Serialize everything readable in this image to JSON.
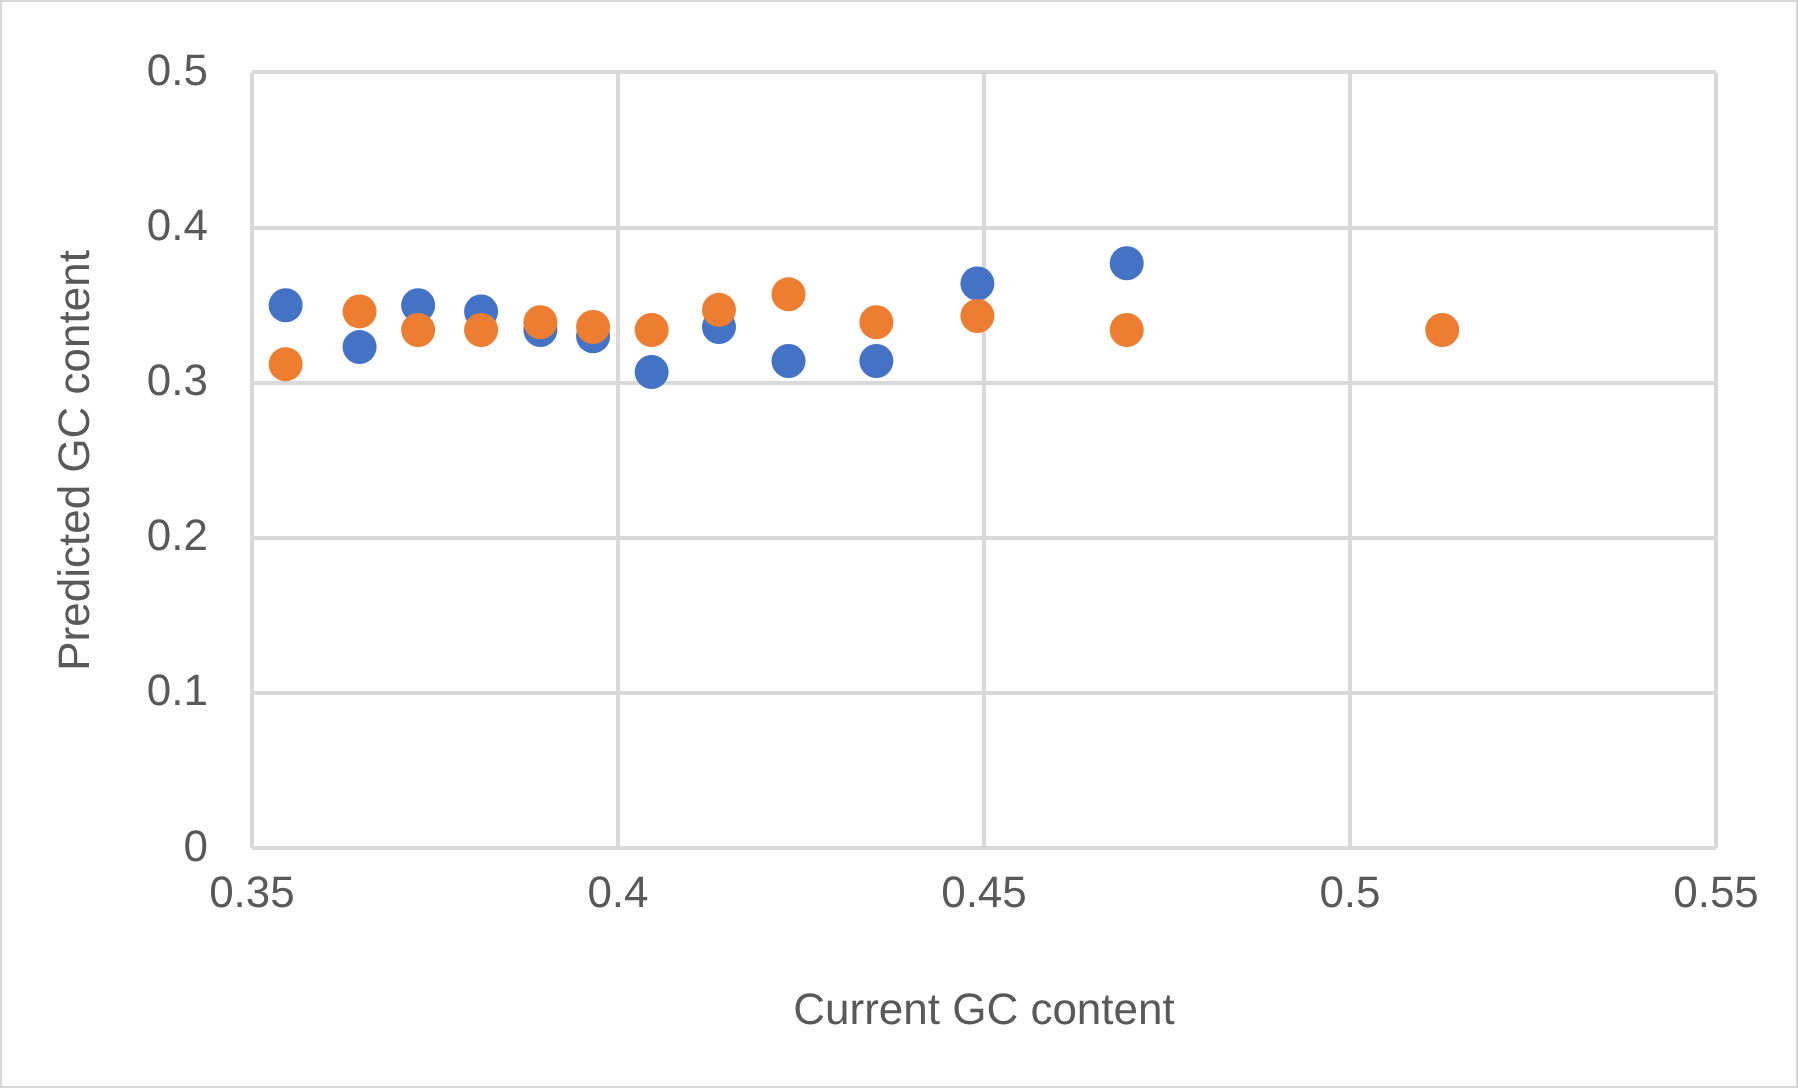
{
  "chart_data": {
    "type": "scatter",
    "xlabel": "Current GC content",
    "ylabel": "Predicted GC content",
    "x": [
      0.3546,
      0.3647,
      0.3727,
      0.3813,
      0.3894,
      0.3966,
      0.4046,
      0.4138,
      0.4233,
      0.4353,
      0.4491,
      0.4695,
      0.5126
    ],
    "series": [
      {
        "color": "#4472c4",
        "values": [
          0.35,
          0.323,
          0.35,
          0.346,
          0.334,
          0.33,
          0.307,
          0.336,
          0.314,
          0.314,
          0.364,
          0.377,
          null
        ]
      },
      {
        "color": "#ed7d31",
        "values": [
          0.312,
          0.346,
          0.334,
          0.334,
          0.339,
          0.336,
          0.334,
          0.347,
          0.357,
          0.339,
          0.343,
          0.334,
          0.334
        ]
      }
    ],
    "xlim": [
      0.35,
      0.55
    ],
    "xticks": [
      0.35,
      0.4,
      0.45,
      0.5,
      0.55
    ],
    "ylim": [
      0,
      0.5
    ],
    "yticks": [
      0,
      0.1,
      0.2,
      0.3,
      0.4,
      0.5
    ],
    "grid": true,
    "legend": false,
    "marker": "circle"
  }
}
